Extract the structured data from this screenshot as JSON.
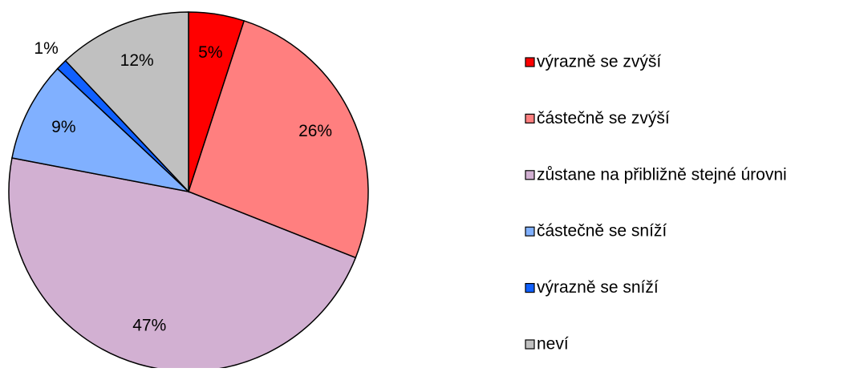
{
  "chart_data": {
    "type": "pie",
    "categories": [
      "výrazně se zvýší",
      "částečně se zvýší",
      "zůstane na přibližně stejné úrovni",
      "částečně se sníží",
      "výrazně se sníží",
      "neví"
    ],
    "values": [
      5,
      26,
      47,
      9,
      1,
      12
    ],
    "value_labels": [
      "5%",
      "26%",
      "47%",
      "9%",
      "1%",
      "12%"
    ],
    "colors": [
      "#ff0000",
      "#ff7f7f",
      "#d2b0d2",
      "#80b0ff",
      "#1060ff",
      "#c0c0c0"
    ],
    "legend": "right"
  }
}
